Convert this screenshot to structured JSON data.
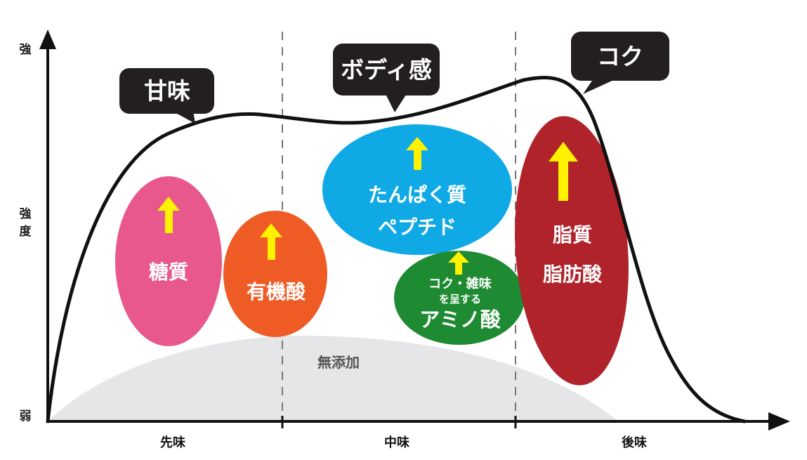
{
  "y_axis": {
    "strong_label": "強",
    "mid_label_1": "強",
    "mid_label_2": "度",
    "weak_label": "弱"
  },
  "x_axis": {
    "labels": [
      "先味",
      "中味",
      "後味"
    ]
  },
  "callouts": {
    "sweetness": "甘味",
    "body": "ボディ感",
    "koku": "コク"
  },
  "ovals": {
    "sugar": {
      "label": "糖質",
      "color": "#e8588c"
    },
    "organic_acid": {
      "label": "有機酸",
      "color": "#ef5b25"
    },
    "protein": {
      "label_line1": "たんぱく質",
      "label_line2": "ペプチド",
      "color": "#0fa9e6"
    },
    "amino": {
      "label_line1": "コク・雑味",
      "label_line2": "を呈する",
      "label_line3": "アミノ酸",
      "color": "#1e8a32"
    },
    "fat": {
      "label_line1": "脂質",
      "label_line2": "脂肪酸",
      "color": "#b0232a"
    }
  },
  "additive_free": {
    "label": "無添加",
    "color": "#e6e6e8"
  },
  "arrow_color": "#fff200",
  "curve_color": "#111111"
}
